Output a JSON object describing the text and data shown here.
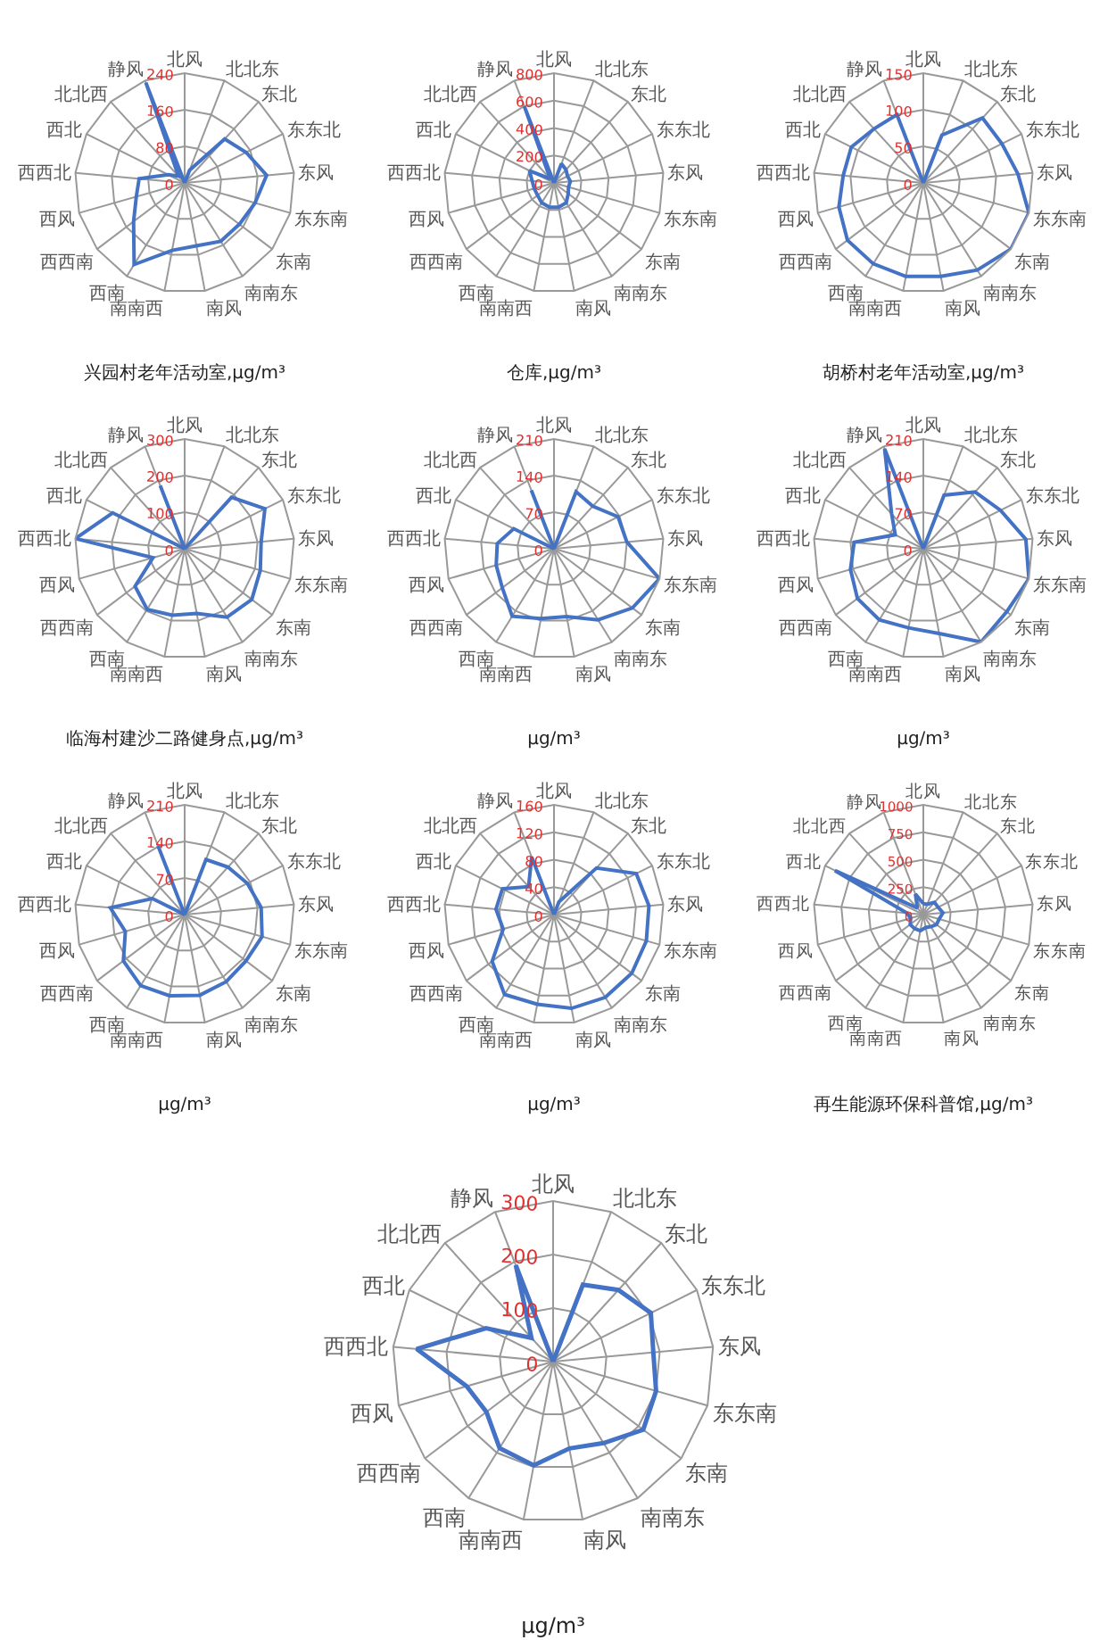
{
  "chart_data": [
    {
      "type": "radar",
      "title": "兴园村老年活动室,μg/m³",
      "categories": [
        "北风",
        "北北东",
        "东北",
        "东东北",
        "东风",
        "东东南",
        "东南",
        "南南东",
        "南风",
        "南南西",
        "西南",
        "西西南",
        "西风",
        "西西北",
        "西北",
        "北北西",
        "静风"
      ],
      "series": [
        {
          "color": "#4472c4",
          "values": [
            0,
            30,
            130,
            150,
            180,
            160,
            150,
            150,
            140,
            150,
            210,
            140,
            110,
            100,
            40,
            20,
            235
          ]
        }
      ],
      "ylim": [
        0,
        240
      ],
      "yticks": [
        0,
        80,
        160,
        240
      ],
      "grid": true
    },
    {
      "type": "radar",
      "title": "仓库,μg/m³",
      "categories": [
        "北风",
        "北北东",
        "东北",
        "东东北",
        "东风",
        "东东南",
        "东南",
        "南南东",
        "南风",
        "南南西",
        "西南",
        "西西南",
        "西风",
        "西西北",
        "西北",
        "北北西",
        "静风"
      ],
      "series": [
        {
          "color": "#4472c4",
          "values": [
            0,
            150,
            130,
            110,
            120,
            110,
            130,
            170,
            180,
            180,
            170,
            150,
            150,
            160,
            200,
            40,
            600
          ]
        }
      ],
      "ylim": [
        0,
        800
      ],
      "yticks": [
        0,
        200,
        400,
        600,
        800
      ],
      "grid": true
    },
    {
      "type": "radar",
      "title": "胡桥村老年活动室,μg/m³",
      "categories": [
        "北风",
        "北北东",
        "东北",
        "东东北",
        "东风",
        "东东南",
        "东南",
        "南南东",
        "南风",
        "南南西",
        "西南",
        "西西南",
        "西风",
        "西西北",
        "西北",
        "北北西",
        "静风"
      ],
      "series": [
        {
          "color": "#4472c4",
          "values": [
            0,
            70,
            120,
            120,
            130,
            150,
            150,
            140,
            130,
            130,
            130,
            130,
            120,
            110,
            110,
            100,
            100
          ]
        }
      ],
      "ylim": [
        0,
        150
      ],
      "yticks": [
        0,
        50,
        100,
        150
      ],
      "grid": true
    },
    {
      "type": "radar",
      "title": "临海村建沙二路健身点,μg/m³",
      "categories": [
        "北风",
        "北北东",
        "东北",
        "东东北",
        "东风",
        "东东南",
        "东南",
        "南南东",
        "南风",
        "南南西",
        "西南",
        "西西南",
        "西风",
        "西西北",
        "西北",
        "北北西",
        "静风"
      ],
      "series": [
        {
          "color": "#4472c4",
          "values": [
            0,
            0,
            190,
            245,
            210,
            215,
            230,
            220,
            180,
            185,
            195,
            170,
            90,
            300,
            220,
            0,
            185
          ]
        }
      ],
      "ylim": [
        0,
        300
      ],
      "yticks": [
        0,
        100,
        200,
        300
      ],
      "grid": true
    },
    {
      "type": "radar",
      "title": "μg/m³",
      "categories": [
        "北风",
        "北北东",
        "东北",
        "东东北",
        "东风",
        "东东南",
        "东南",
        "南南东",
        "南风",
        "南南西",
        "西南",
        "西西南",
        "西风",
        "西西北",
        "西北",
        "北北西",
        "静风"
      ],
      "series": [
        {
          "color": "#4472c4",
          "values": [
            0,
            117,
            110,
            137,
            140,
            210,
            188,
            160,
            132,
            136,
            152,
            124,
            115,
            109,
            86,
            0,
            120
          ]
        }
      ],
      "ylim": [
        0,
        210
      ],
      "yticks": [
        0,
        70,
        140,
        210
      ],
      "grid": true
    },
    {
      "type": "radar",
      "title": "μg/m³",
      "categories": [
        "北风",
        "北北东",
        "东北",
        "东东北",
        "东风",
        "东东南",
        "东南",
        "南南东",
        "南风",
        "南南西",
        "西南",
        "西西南",
        "西风",
        "西西北",
        "西北",
        "北北西",
        "静风"
      ],
      "series": [
        {
          "color": "#4472c4",
          "values": [
            0,
            110,
            147,
            165,
            197,
            210,
            200,
            210,
            165,
            154,
            160,
            158,
            145,
            133,
            60,
            90,
            205
          ]
        }
      ],
      "ylim": [
        0,
        210
      ],
      "yticks": [
        0,
        70,
        140,
        210
      ],
      "grid": true
    },
    {
      "type": "radar",
      "title": "μg/m³",
      "categories": [
        "北风",
        "北北东",
        "东北",
        "东东北",
        "东风",
        "东东南",
        "东南",
        "南南东",
        "南风",
        "南南西",
        "西南",
        "西西南",
        "西风",
        "西西北",
        "西北",
        "北北西",
        "静风"
      ],
      "series": [
        {
          "color": "#4472c4",
          "values": [
            0,
            113,
            123,
            134,
            147,
            154,
            147,
            151,
            157,
            158,
            160,
            147,
            118,
            143,
            69,
            0,
            141
          ]
        }
      ],
      "ylim": [
        0,
        210
      ],
      "yticks": [
        0,
        70,
        140,
        210
      ],
      "grid": true
    },
    {
      "type": "radar",
      "title": "μg/m³",
      "categories": [
        "北风",
        "北北东",
        "东北",
        "东东北",
        "东风",
        "东东南",
        "东南",
        "南南东",
        "南风",
        "南南西",
        "西南",
        "西西南",
        "西风",
        "西西北",
        "西北",
        "北北西",
        "静风"
      ],
      "series": [
        {
          "color": "#4472c4",
          "values": [
            0,
            20,
            92,
            134,
            139,
            140,
            142,
            142,
            139,
            133,
            137,
            113,
            77,
            85,
            84,
            55,
            90
          ]
        }
      ],
      "ylim": [
        0,
        160
      ],
      "yticks": [
        0,
        40,
        80,
        120,
        160
      ],
      "grid": true
    },
    {
      "type": "radar",
      "title": "再生能源环保科普馆,μg/m³",
      "categories": [
        "北风",
        "北北东",
        "东北",
        "东东北",
        "东风",
        "东东南",
        "东南",
        "南南东",
        "南风",
        "南南西",
        "西南",
        "西西南",
        "西风",
        "西西北",
        "西北",
        "北北西",
        "静风"
      ],
      "series": [
        {
          "color": "#4472c4",
          "values": [
            100,
            100,
            150,
            150,
            180,
            150,
            150,
            130,
            120,
            150,
            150,
            150,
            120,
            150,
            900,
            80,
            200
          ]
        }
      ],
      "ylim": [
        0,
        1000
      ],
      "yticks": [
        0,
        250,
        500,
        750,
        1000
      ],
      "grid": true
    },
    {
      "type": "radar",
      "title": "μg/m³",
      "categories": [
        "北风",
        "北北东",
        "东北",
        "东东北",
        "东风",
        "东东南",
        "东南",
        "南南东",
        "南风",
        "南南西",
        "西南",
        "西西南",
        "西风",
        "西西北",
        "西北",
        "北北西",
        "静风"
      ],
      "series": [
        {
          "color": "#4472c4",
          "values": [
            0,
            154,
            181,
            204,
            188,
            200,
            211,
            179,
            165,
            197,
            190,
            156,
            168,
            256,
            140,
            60,
            193
          ]
        }
      ],
      "ylim": [
        0,
        300
      ],
      "yticks": [
        0,
        100,
        200,
        300
      ],
      "grid": true
    }
  ]
}
